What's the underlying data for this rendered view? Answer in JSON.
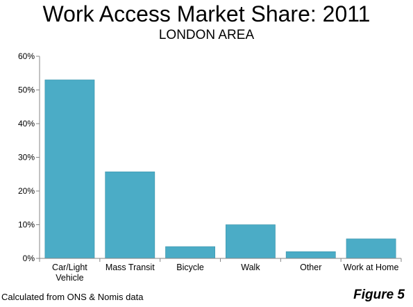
{
  "chart_data": {
    "type": "bar",
    "title": "Work Access Market Share: 2011",
    "subtitle": "LONDON AREA",
    "categories": [
      "Car/Light\nVehicle",
      "Mass Transit",
      "Bicycle",
      "Walk",
      "Other",
      "Work at Home"
    ],
    "values": [
      53,
      25.7,
      3.5,
      10,
      2,
      5.8
    ],
    "ylim": [
      0,
      60
    ],
    "yticks": [
      0,
      10,
      20,
      30,
      40,
      50,
      60
    ],
    "ytick_labels": [
      "0%",
      "10%",
      "20%",
      "30%",
      "40%",
      "50%",
      "60%"
    ],
    "bar_color": "#4BACC6",
    "grid": false,
    "legend": "none"
  },
  "source_text": "Calculated from ONS & Nomis data",
  "figure_label": "Figure 5"
}
